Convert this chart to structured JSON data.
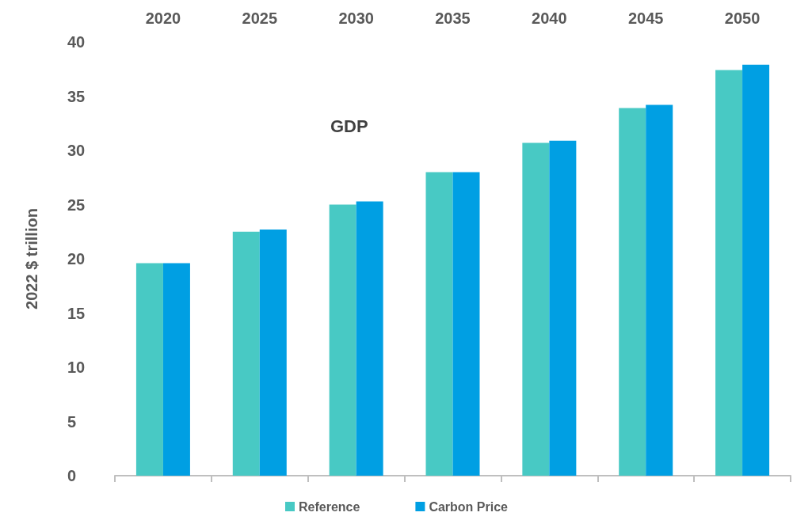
{
  "chart_data": {
    "type": "bar",
    "title": "GDP",
    "ylabel": "2022 $ trillion",
    "categories": [
      "2020",
      "2025",
      "2030",
      "2035",
      "2040",
      "2045",
      "2050"
    ],
    "series": [
      {
        "name": "Reference",
        "color": "#48c9c4",
        "values": [
          19.6,
          22.5,
          25.0,
          28.0,
          30.7,
          33.9,
          37.4
        ]
      },
      {
        "name": "Carbon Price",
        "color": "#009fe3",
        "values": [
          19.6,
          22.7,
          25.3,
          28.0,
          30.9,
          34.2,
          37.9
        ]
      }
    ],
    "ylim": [
      0,
      40
    ],
    "yticks": [
      0,
      5,
      10,
      15,
      20,
      25,
      30,
      35,
      40
    ],
    "grid": false,
    "legend": "bottom"
  }
}
